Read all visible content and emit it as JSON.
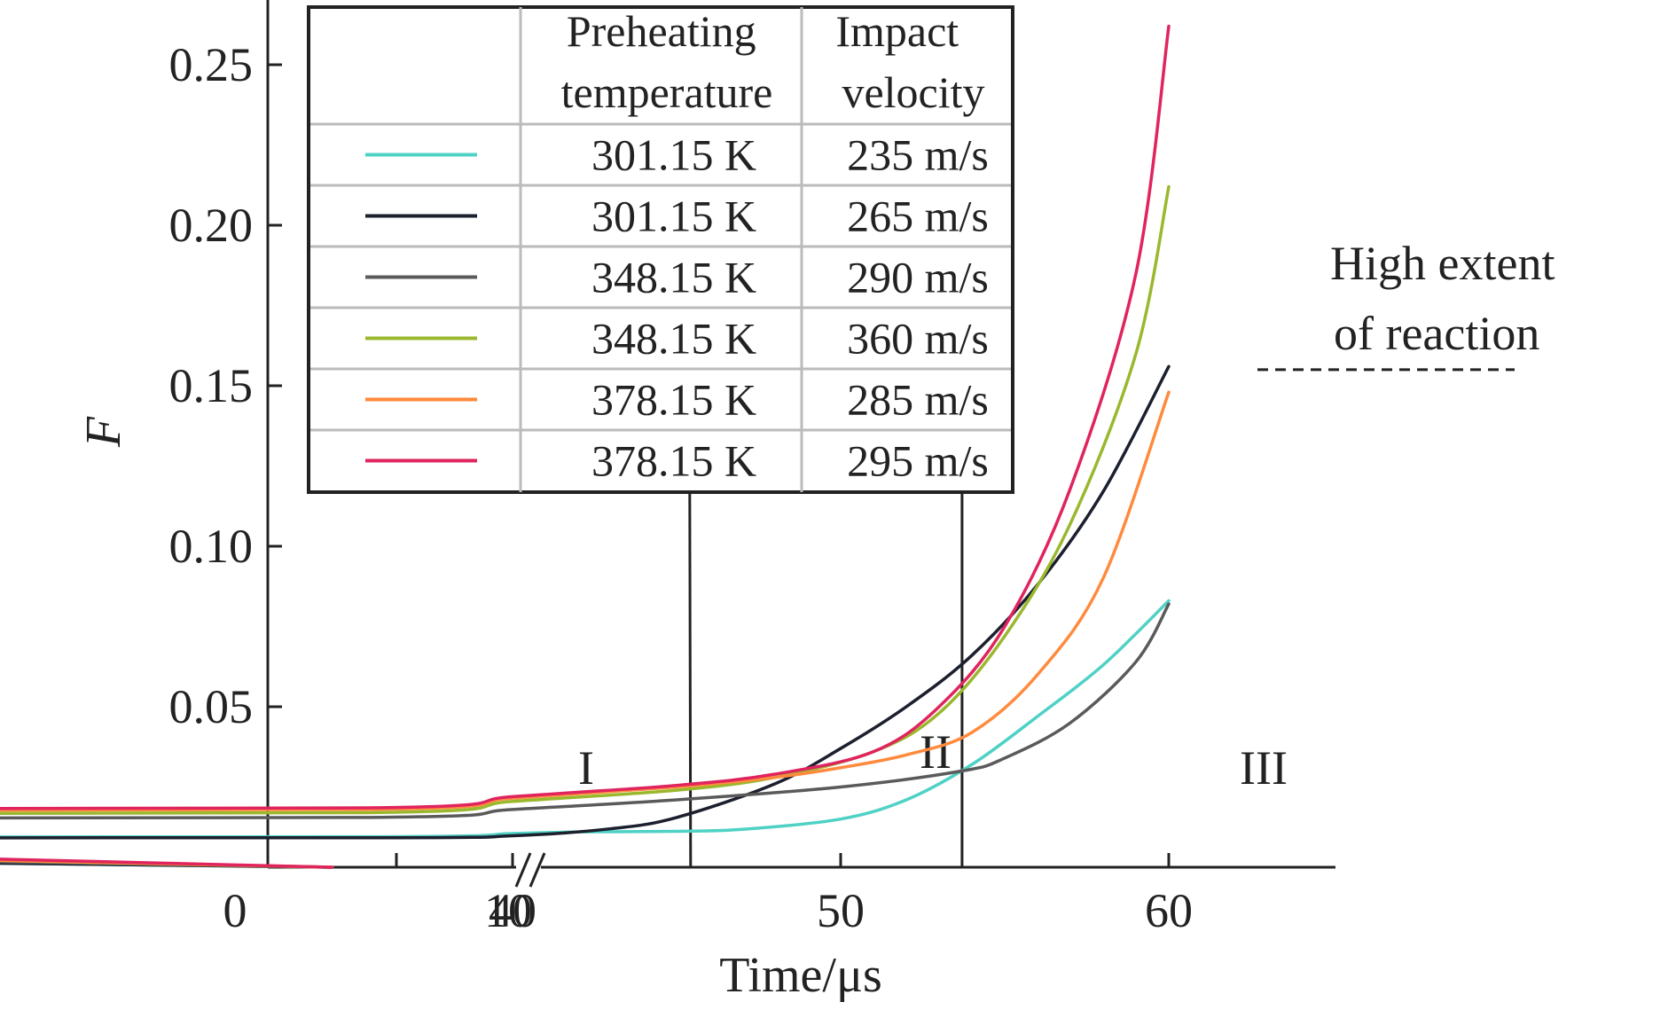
{
  "chart_data": {
    "type": "line",
    "xlabel": "Time/μs",
    "ylabel": "F",
    "x_axis": {
      "broken": true,
      "segment1": {
        "range": [
          0,
          10
        ],
        "ticks": [
          "0",
          "10"
        ]
      },
      "segment2": {
        "range": [
          35,
          60
        ],
        "ticks": [
          "40",
          "50",
          "60"
        ]
      },
      "tick_values": [
        0,
        10,
        40,
        50,
        60
      ]
    },
    "y_axis": {
      "range": [
        0,
        0.265
      ],
      "ticks": [
        "0.05",
        "0.10",
        "0.15",
        "0.20",
        "0.25"
      ]
    },
    "grid": false,
    "legend": {
      "placement": "top-left",
      "headers": [
        "Preheating\ntemperature",
        "Impact\nvelocity"
      ]
    },
    "region_boundaries": [
      45.4,
      53.7
    ],
    "regions": [
      "I",
      "II",
      "III"
    ],
    "threshold": {
      "y": 0.155,
      "label_line1": "High extent",
      "label_line2": "of reaction"
    },
    "series": [
      {
        "temperature": "301.15 K",
        "velocity": "235 m/s",
        "color": "#4fd1c5",
        "points": [
          [
            2.5,
            0
          ],
          [
            10.4,
            0.003
          ],
          [
            10.6,
            0.0095
          ],
          [
            35.6,
            0.0095
          ],
          [
            40,
            0.0105
          ],
          [
            42,
            0.011
          ],
          [
            45,
            0.0112
          ],
          [
            47,
            0.0118
          ],
          [
            50,
            0.015
          ],
          [
            52,
            0.021
          ],
          [
            54,
            0.032
          ],
          [
            56,
            0.047
          ],
          [
            58,
            0.063
          ],
          [
            60,
            0.083
          ]
        ]
      },
      {
        "temperature": "301.15 K",
        "velocity": "265 m/s",
        "color": "#1c1f2e",
        "points": [
          [
            2.5,
            0
          ],
          [
            10.4,
            0.003
          ],
          [
            10.6,
            0.0092
          ],
          [
            35.6,
            0.0092
          ],
          [
            40,
            0.0098
          ],
          [
            43,
            0.012
          ],
          [
            45,
            0.0155
          ],
          [
            48,
            0.026
          ],
          [
            50,
            0.037
          ],
          [
            52,
            0.05
          ],
          [
            54,
            0.066
          ],
          [
            56,
            0.088
          ],
          [
            58,
            0.117
          ],
          [
            60,
            0.156
          ]
        ]
      },
      {
        "temperature": "348.15 K",
        "velocity": "290 m/s",
        "color": "#5a5a5a",
        "points": [
          [
            2.5,
            0
          ],
          [
            10.4,
            0.004
          ],
          [
            10.6,
            0.0155
          ],
          [
            35.6,
            0.0155
          ],
          [
            40,
            0.018
          ],
          [
            45,
            0.021
          ],
          [
            50,
            0.025
          ],
          [
            53.7,
            0.03
          ],
          [
            55,
            0.034
          ],
          [
            57,
            0.045
          ],
          [
            59,
            0.064
          ],
          [
            60,
            0.082
          ]
        ]
      },
      {
        "temperature": "348.15 K",
        "velocity": "360 m/s",
        "color": "#9ab82e",
        "points": [
          [
            2.5,
            0
          ],
          [
            10.4,
            0.005
          ],
          [
            10.6,
            0.017
          ],
          [
            35.6,
            0.017
          ],
          [
            40,
            0.0205
          ],
          [
            45,
            0.024
          ],
          [
            48,
            0.028
          ],
          [
            51,
            0.036
          ],
          [
            53,
            0.048
          ],
          [
            55,
            0.072
          ],
          [
            57,
            0.107
          ],
          [
            59,
            0.16
          ],
          [
            60,
            0.212
          ]
        ]
      },
      {
        "temperature": "378.15 K",
        "velocity": "285 m/s",
        "color": "#ff8a3d",
        "points": [
          [
            2.5,
            0
          ],
          [
            10.4,
            0.005
          ],
          [
            10.6,
            0.018
          ],
          [
            35.6,
            0.018
          ],
          [
            40,
            0.0215
          ],
          [
            45,
            0.025
          ],
          [
            48,
            0.028
          ],
          [
            50,
            0.031
          ],
          [
            52,
            0.035
          ],
          [
            54,
            0.042
          ],
          [
            56,
            0.06
          ],
          [
            58,
            0.09
          ],
          [
            60,
            0.148
          ]
        ]
      },
      {
        "temperature": "378.15 K",
        "velocity": "295 m/s",
        "color": "#e0245e",
        "points": [
          [
            2.5,
            0
          ],
          [
            10.4,
            0.006
          ],
          [
            10.6,
            0.0185
          ],
          [
            35.6,
            0.0185
          ],
          [
            40,
            0.022
          ],
          [
            45,
            0.0255
          ],
          [
            48,
            0.029
          ],
          [
            51,
            0.036
          ],
          [
            53,
            0.05
          ],
          [
            55,
            0.075
          ],
          [
            57,
            0.118
          ],
          [
            59,
            0.185
          ],
          [
            60,
            0.262
          ]
        ]
      }
    ]
  }
}
